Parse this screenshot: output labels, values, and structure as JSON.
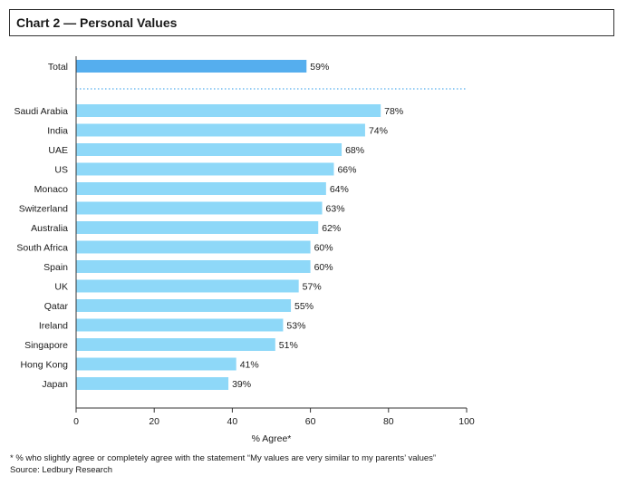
{
  "page": {
    "title": "Chart 2 — Personal Values"
  },
  "chart_data": {
    "type": "bar",
    "orientation": "horizontal",
    "total": {
      "category": "Total",
      "value": 59,
      "label": "59%",
      "color": "#55aeee"
    },
    "categories": [
      "Saudi Arabia",
      "India",
      "UAE",
      "US",
      "Monaco",
      "Switzerland",
      "Australia",
      "South Africa",
      "Spain",
      "UK",
      "Qatar",
      "Ireland",
      "Singapore",
      "Hong Kong",
      "Japan"
    ],
    "values": [
      78,
      74,
      68,
      66,
      64,
      63,
      62,
      60,
      60,
      57,
      55,
      53,
      51,
      41,
      39
    ],
    "value_labels": [
      "78%",
      "74%",
      "68%",
      "66%",
      "64%",
      "63%",
      "62%",
      "60%",
      "60%",
      "57%",
      "55%",
      "53%",
      "51%",
      "41%",
      "39%"
    ],
    "bar_color": "#8ed8f8",
    "separator_color": "#55aeee",
    "xlabel": "% Agree*",
    "xlim": [
      0,
      100
    ],
    "xticks": [
      0,
      20,
      40,
      60,
      80,
      100
    ],
    "xtick_labels": [
      "0",
      "20",
      "40",
      "60",
      "80",
      "100"
    ],
    "grid": false,
    "legend": "none"
  },
  "footnotes": {
    "note": "* % who slightly agree or completely agree with the statement “My values are very similar to my parents’ values”",
    "source": "Source: Ledbury Research"
  }
}
